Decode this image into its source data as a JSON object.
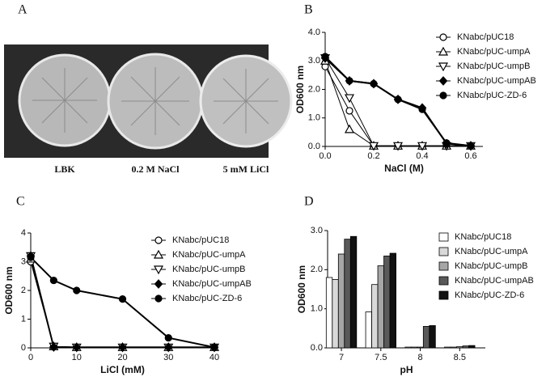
{
  "panel_a": {
    "letter": "A",
    "labels": [
      "LBK",
      "0.2 M NaCl",
      "5 mM LiCl"
    ]
  },
  "chart_data": [
    {
      "type": "line",
      "panel": "B",
      "x_label": "NaCl (M)",
      "y_label": "OD600 nm",
      "x": [
        0,
        0.1,
        0.2,
        0.3,
        0.4,
        0.5,
        0.6
      ],
      "xlim": [
        0,
        0.65
      ],
      "xticks": [
        {
          "value": 0,
          "label": "0.0"
        },
        0.2,
        0.4,
        0.6
      ],
      "ylim": [
        0,
        4
      ],
      "yticks": [
        {
          "value": 0,
          "label": "0.0"
        },
        {
          "value": 1,
          "label": "1.0"
        },
        {
          "value": 2,
          "label": "2.0"
        },
        {
          "value": 3,
          "label": "3.0"
        },
        {
          "value": 4,
          "label": "4.0"
        }
      ],
      "series": [
        {
          "name": "KNabc/pUC18",
          "color": "#000000",
          "marker": "circle-open",
          "values": [
            2.8,
            1.25,
            0.02,
            0.02,
            0.02,
            0.02,
            0.02
          ]
        },
        {
          "name": "KNabc/pUC-umpA",
          "color": "#000000",
          "marker": "triangle-up-open",
          "values": [
            3.0,
            0.6,
            0.02,
            0.02,
            0.02,
            0.02,
            0.02
          ]
        },
        {
          "name": "KNabc/pUC-umpB",
          "color": "#000000",
          "marker": "triangle-down-open",
          "values": [
            3.1,
            1.7,
            0.02,
            0.02,
            0.02,
            0.02,
            0.02
          ]
        },
        {
          "name": "KNabc/pUC-umpAB",
          "color": "#000000",
          "marker": "diamond",
          "values": [
            3.1,
            2.3,
            2.2,
            1.65,
            1.35,
            0.1,
            0.02
          ]
        },
        {
          "name": "KNabc/pUC-ZD-6",
          "color": "#000000",
          "marker": "circle",
          "values": [
            3.15,
            2.3,
            2.2,
            1.65,
            1.3,
            0.12,
            0.02
          ]
        }
      ]
    },
    {
      "type": "line",
      "panel": "C",
      "x_label": "LiCl (mM)",
      "y_label": "OD600 nm",
      "x": [
        0,
        5,
        10,
        20,
        30,
        40
      ],
      "xlim": [
        0,
        40
      ],
      "xticks": [
        0,
        10,
        20,
        30,
        40
      ],
      "ylim": [
        0,
        4
      ],
      "yticks": [
        0,
        1,
        2,
        3,
        4
      ],
      "series": [
        {
          "name": "KNabc/pUC18",
          "color": "#000000",
          "marker": "circle-open",
          "values": [
            3.0,
            0.05,
            0.02,
            0.02,
            0.02,
            0.02
          ]
        },
        {
          "name": "KNabc/pUC-umpA",
          "color": "#000000",
          "marker": "triangle-up-open",
          "values": [
            3.1,
            0.05,
            0.02,
            0.02,
            0.02,
            0.02
          ]
        },
        {
          "name": "KNabc/pUC-umpB",
          "color": "#000000",
          "marker": "triangle-down-open",
          "values": [
            3.2,
            0.05,
            0.02,
            0.02,
            0.02,
            0.02
          ]
        },
        {
          "name": "KNabc/pUC-umpAB",
          "color": "#000000",
          "marker": "diamond",
          "values": [
            3.2,
            0.03,
            0.02,
            0.02,
            0.02,
            0.02
          ]
        },
        {
          "name": "KNabc/pUC-ZD-6",
          "color": "#000000",
          "marker": "circle",
          "values": [
            3.15,
            2.35,
            2.0,
            1.7,
            0.35,
            0.02
          ]
        }
      ]
    },
    {
      "type": "bar",
      "panel": "D",
      "x_label": "pH",
      "y_label": "OD600 nm",
      "categories": [
        "7",
        "7.5",
        "8",
        "8.5"
      ],
      "ylim": [
        0,
        3
      ],
      "yticks": [
        {
          "value": 0,
          "label": "0.0"
        },
        {
          "value": 1,
          "label": "1.0"
        },
        {
          "value": 2,
          "label": "2.0"
        },
        {
          "value": 3,
          "label": "3.0"
        }
      ],
      "series": [
        {
          "name": "KNabc/pUC18",
          "color": "#ffffff",
          "values": [
            1.8,
            0.92,
            0.02,
            0.02
          ]
        },
        {
          "name": "KNabc/pUC-umpA",
          "color": "#d9d9d9",
          "values": [
            1.75,
            1.62,
            0.02,
            0.02
          ]
        },
        {
          "name": "KNabc/pUC-umpB",
          "color": "#a6a6a6",
          "values": [
            2.4,
            2.1,
            0.02,
            0.03
          ]
        },
        {
          "name": "KNabc/pUC-umpAB",
          "color": "#595959",
          "values": [
            2.78,
            2.35,
            0.55,
            0.05
          ]
        },
        {
          "name": "KNabc/pUC-ZD-6",
          "color": "#111111",
          "values": [
            2.85,
            2.42,
            0.57,
            0.06
          ]
        }
      ]
    }
  ]
}
